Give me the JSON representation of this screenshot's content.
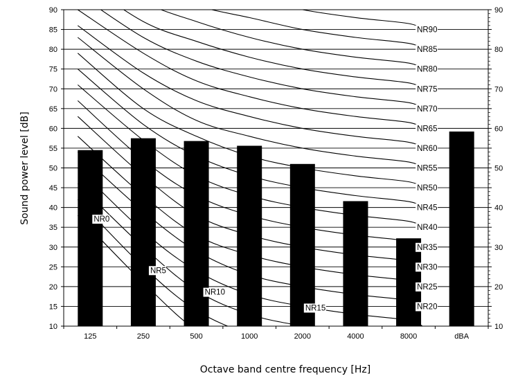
{
  "chart_data": {
    "type": "bar",
    "title": "",
    "xlabel": "Octave band centre frequency [Hz]",
    "ylabel": "Sound power level [dB]",
    "ylim": [
      10,
      90
    ],
    "y_ticks": [
      10,
      15,
      20,
      25,
      30,
      35,
      40,
      45,
      50,
      55,
      60,
      65,
      70,
      75,
      80,
      85,
      90
    ],
    "categories": [
      "125",
      "250",
      "500",
      "1000",
      "2000",
      "4000",
      "8000",
      "dBA"
    ],
    "values": [
      54.5,
      57.5,
      56.8,
      55.6,
      51.0,
      41.6,
      32.2,
      59.2
    ],
    "bar_color": "#000000",
    "grid": true,
    "secondary_y_axis": true,
    "nr_curves": [
      {
        "name": "NR90",
        "values": [
          110,
          100,
          96,
          93,
          90,
          88,
          86.5,
          85
        ]
      },
      {
        "name": "NR85",
        "values": [
          106,
          96,
          91,
          88,
          85,
          83,
          81.5,
          80
        ]
      },
      {
        "name": "NR80",
        "values": [
          102,
          92,
          87,
          83,
          80,
          78,
          76.5,
          75
        ]
      },
      {
        "name": "NR75",
        "values": [
          98,
          87,
          82,
          78,
          75,
          73,
          71.5,
          70
        ]
      },
      {
        "name": "NR70",
        "values": [
          94,
          83,
          77,
          73,
          70,
          68,
          66.5,
          65
        ]
      },
      {
        "name": "NR65",
        "values": [
          90,
          79,
          72,
          68,
          65,
          63,
          61.5,
          60
        ]
      },
      {
        "name": "NR60",
        "values": [
          86,
          74,
          67,
          63,
          60,
          58,
          56.5,
          55
        ]
      },
      {
        "name": "NR55",
        "values": [
          83,
          70,
          62,
          58,
          55,
          53,
          51.5,
          50
        ]
      },
      {
        "name": "NR50",
        "values": [
          79,
          65,
          58,
          53,
          50,
          48,
          46.5,
          45
        ]
      },
      {
        "name": "NR45",
        "values": [
          75,
          61,
          53,
          48,
          45,
          43,
          41.5,
          40
        ]
      },
      {
        "name": "NR40",
        "values": [
          71,
          57,
          48,
          43,
          40,
          38,
          36.5,
          35
        ]
      },
      {
        "name": "NR35",
        "values": [
          67,
          52,
          43,
          38,
          35,
          33,
          31.5,
          30
        ]
      },
      {
        "name": "NR30",
        "values": [
          63,
          48,
          38,
          33,
          30,
          28,
          26.5,
          25
        ]
      },
      {
        "name": "NR25",
        "values": [
          58,
          43,
          33,
          28,
          25,
          23,
          21.5,
          20
        ]
      },
      {
        "name": "NR20",
        "values": [
          54,
          39,
          29,
          23,
          20,
          18,
          16.5,
          15
        ]
      },
      {
        "name": "NR15",
        "values": [
          50,
          34,
          24,
          18,
          15,
          13,
          11.5,
          10
        ]
      },
      {
        "name": "NR10",
        "values": [
          46,
          30,
          19,
          13,
          10,
          8,
          6.5,
          5
        ]
      },
      {
        "name": "NR5",
        "values": [
          42,
          25,
          14,
          8,
          5,
          3,
          1.5,
          0
        ]
      },
      {
        "name": "NR0",
        "values": [
          38,
          21,
          9,
          3,
          0,
          -2,
          -3.5,
          -5
        ]
      }
    ]
  }
}
